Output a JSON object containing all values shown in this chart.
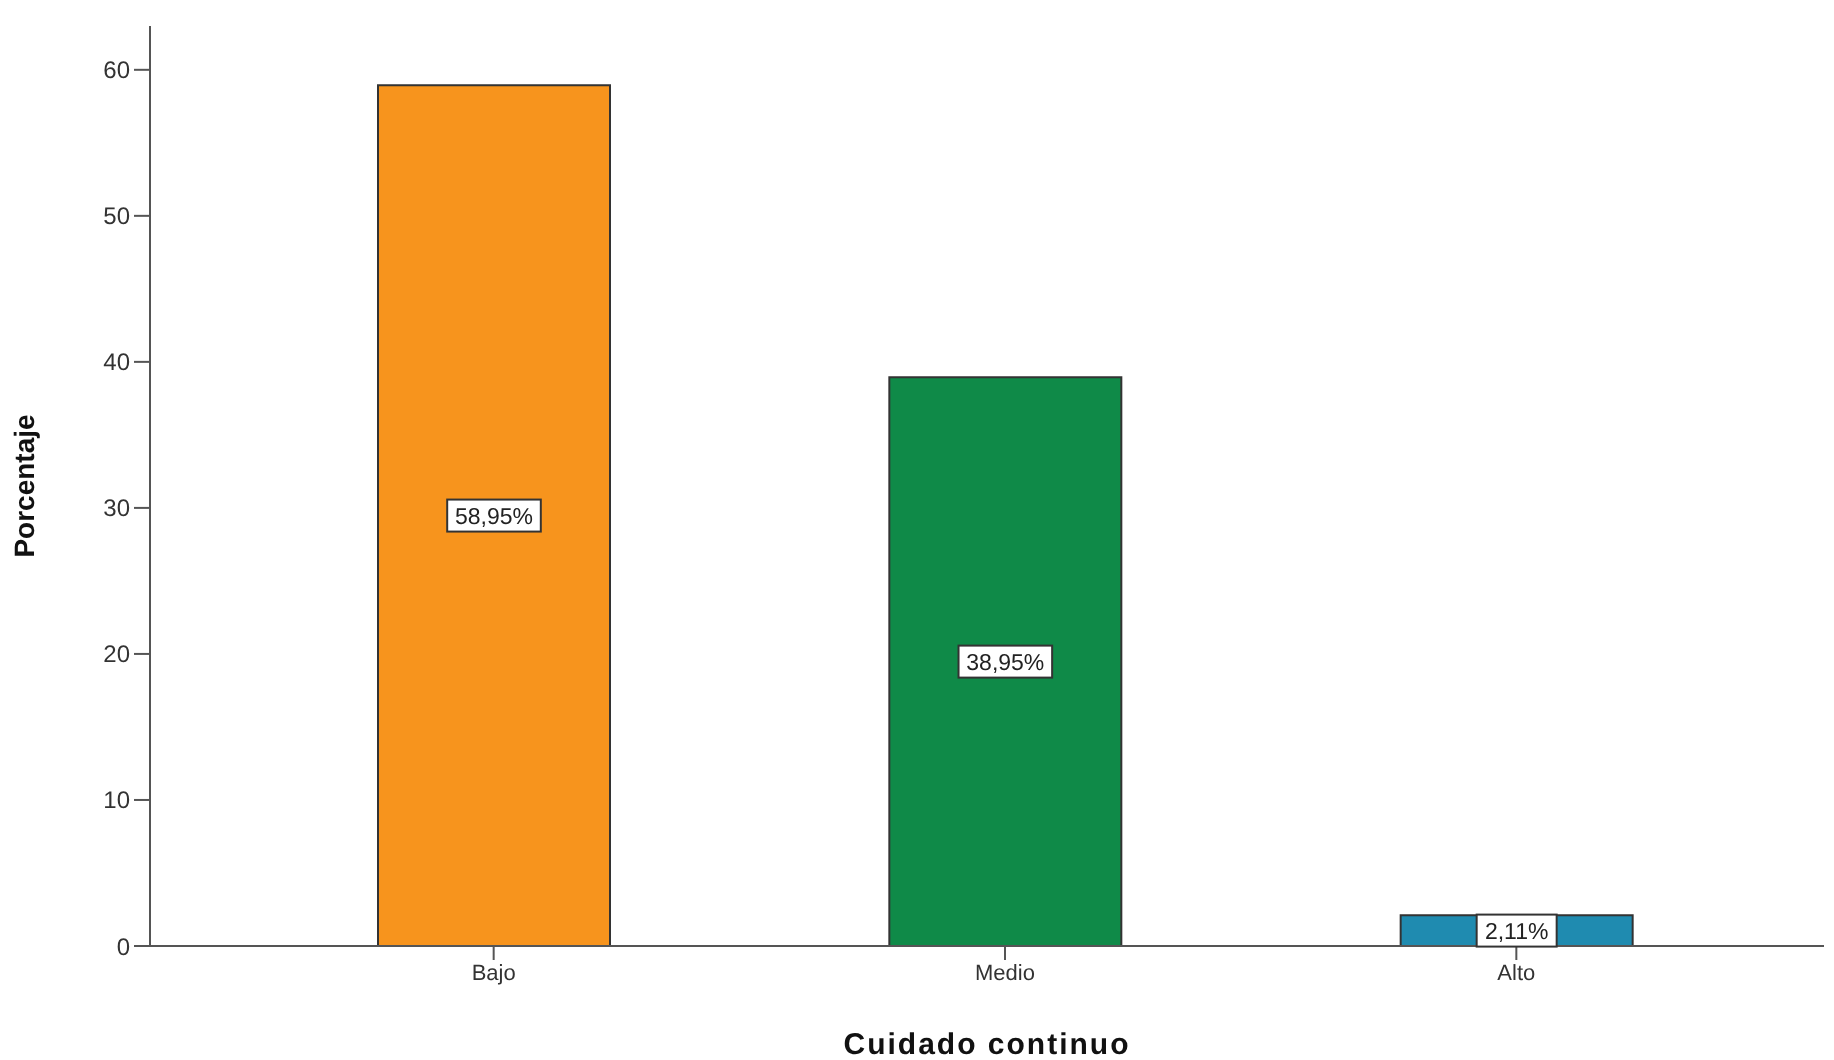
{
  "chart_data": {
    "type": "bar",
    "xlabel": "Cuidado continuo",
    "ylabel": "Porcentaje",
    "categories": [
      "Bajo",
      "Medio",
      "Alto"
    ],
    "values": [
      58.95,
      38.95,
      2.11
    ],
    "colors": [
      "#f7941d",
      "#0f8a48",
      "#1f8bb0"
    ],
    "value_labels": [
      "58,95%",
      "38,95%",
      "2,11%"
    ],
    "ylim": [
      0,
      63
    ],
    "yticks": [
      0,
      10,
      20,
      30,
      40,
      50,
      60
    ]
  }
}
